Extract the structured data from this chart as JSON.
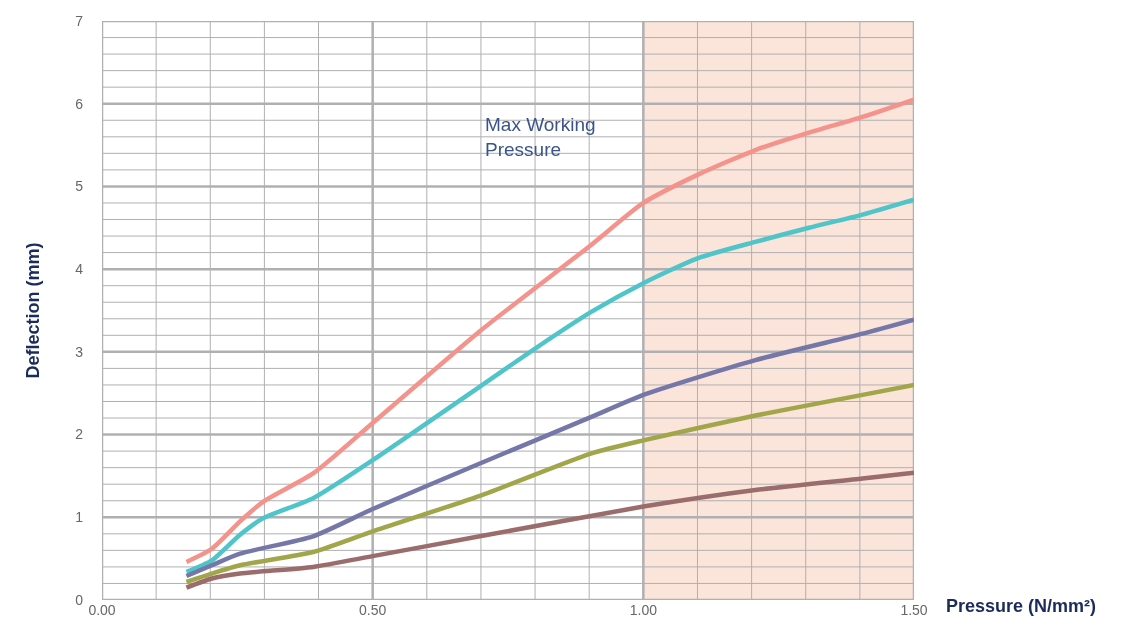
{
  "chart_data": {
    "type": "line",
    "xlabel": "Pressure (N/mm²)",
    "ylabel": "Deflection (mm)",
    "xlim": [
      0,
      1.5
    ],
    "ylim": [
      0,
      7
    ],
    "xticks": [
      {
        "value": 0,
        "label": "0.00"
      },
      {
        "value": 0.1,
        "label": null
      },
      {
        "value": 0.2,
        "label": null
      },
      {
        "value": 0.3,
        "label": null
      },
      {
        "value": 0.4,
        "label": null
      },
      {
        "value": 0.5,
        "label": "0.50"
      },
      {
        "value": 0.6,
        "label": null
      },
      {
        "value": 0.7,
        "label": null
      },
      {
        "value": 0.8,
        "label": null
      },
      {
        "value": 0.9,
        "label": null
      },
      {
        "value": 1,
        "label": "1.00"
      },
      {
        "value": 1.1,
        "label": null
      },
      {
        "value": 1.2,
        "label": null
      },
      {
        "value": 1.3,
        "label": null
      },
      {
        "value": 1.4,
        "label": null
      },
      {
        "value": 1.5,
        "label": "1.50"
      }
    ],
    "yticks": [
      0,
      {
        "value": 0.2,
        "label": null
      },
      {
        "value": 0.4,
        "label": null
      },
      {
        "value": 0.6,
        "label": null
      },
      {
        "value": 0.8,
        "label": null
      },
      1,
      {
        "value": 1.2,
        "label": null
      },
      {
        "value": 1.4,
        "label": null
      },
      {
        "value": 1.6,
        "label": null
      },
      {
        "value": 1.8,
        "label": null
      },
      2,
      {
        "value": 2.2,
        "label": null
      },
      {
        "value": 2.4,
        "label": null
      },
      {
        "value": 2.6,
        "label": null
      },
      {
        "value": 2.8,
        "label": null
      },
      3,
      {
        "value": 3.2,
        "label": null
      },
      {
        "value": 3.4,
        "label": null
      },
      {
        "value": 3.6,
        "label": null
      },
      {
        "value": 3.8,
        "label": null
      },
      4,
      {
        "value": 4.2,
        "label": null
      },
      {
        "value": 4.4,
        "label": null
      },
      {
        "value": 4.6,
        "label": null
      },
      {
        "value": 4.8,
        "label": null
      },
      5,
      {
        "value": 5.2,
        "label": null
      },
      {
        "value": 5.4,
        "label": null
      },
      {
        "value": 5.6,
        "label": null
      },
      {
        "value": 5.8,
        "label": null
      },
      6,
      {
        "value": 6.2,
        "label": null
      },
      {
        "value": 6.4,
        "label": null
      },
      {
        "value": 6.6,
        "label": null
      },
      {
        "value": 6.8,
        "label": null
      },
      7
    ],
    "grid": true,
    "marker": "none",
    "line_style": "solid",
    "bands": [
      {
        "axis": "x",
        "from": 1,
        "to": 1.5,
        "label": "Max Working Pressure",
        "color": "#fbe4d9"
      }
    ],
    "series": [
      {
        "color": "#f4928c",
        "x": [
          0.156,
          0.203,
          0.255,
          0.298,
          0.39,
          0.5,
          0.698,
          0.903,
          1.0,
          1.1,
          1.207,
          1.306,
          1.405,
          1.5
        ],
        "values": [
          0.46,
          0.62,
          0.95,
          1.19,
          1.53,
          2.14,
          3.25,
          4.29,
          4.8,
          5.14,
          5.44,
          5.65,
          5.84,
          6.05
        ]
      },
      {
        "color": "#4fc4c9",
        "x": [
          0.156,
          0.203,
          0.255,
          0.298,
          0.39,
          0.5,
          0.698,
          0.8,
          0.903,
          1.0,
          1.1,
          1.207,
          1.306,
          1.405,
          1.5
        ],
        "values": [
          0.34,
          0.48,
          0.79,
          0.99,
          1.23,
          1.69,
          2.58,
          3.04,
          3.48,
          3.83,
          4.13,
          4.33,
          4.5,
          4.66,
          4.84
        ]
      },
      {
        "color": "#7677a9",
        "x": [
          0.156,
          0.203,
          0.255,
          0.39,
          0.5,
          0.698,
          0.903,
          1.0,
          1.207,
          1.405,
          1.5
        ],
        "values": [
          0.29,
          0.42,
          0.56,
          0.77,
          1.1,
          1.65,
          2.21,
          2.48,
          2.9,
          3.22,
          3.39
        ]
      },
      {
        "color": "#a1a64a",
        "x": [
          0.156,
          0.203,
          0.255,
          0.39,
          0.5,
          0.698,
          0.903,
          1.0,
          1.207,
          1.405,
          1.5
        ],
        "values": [
          0.22,
          0.32,
          0.42,
          0.58,
          0.83,
          1.26,
          1.77,
          1.93,
          2.23,
          2.48,
          2.6
        ]
      },
      {
        "color": "#9b6c6c",
        "x": [
          0.156,
          0.203,
          0.255,
          0.39,
          0.5,
          0.698,
          1.0,
          1.207,
          1.405,
          1.5
        ],
        "values": [
          0.15,
          0.26,
          0.32,
          0.4,
          0.53,
          0.77,
          1.13,
          1.33,
          1.47,
          1.54
        ]
      }
    ]
  }
}
